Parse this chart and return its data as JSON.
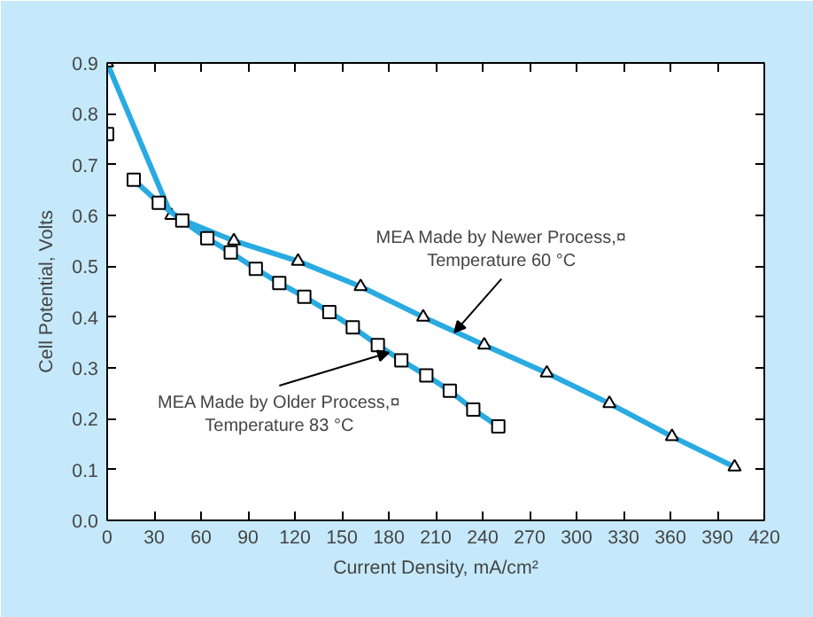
{
  "chart_data": {
    "type": "line",
    "xlabel": "Current Density, mA/cm²",
    "ylabel": "Cell Potential, Volts",
    "xlim": [
      0,
      420
    ],
    "ylim": [
      0,
      0.9
    ],
    "xticks": [
      0,
      30,
      60,
      90,
      120,
      150,
      180,
      210,
      240,
      270,
      300,
      330,
      360,
      390,
      420
    ],
    "yticks": [
      {
        "value": 0,
        "label": "0.0"
      },
      0.1,
      0.2,
      0.3,
      0.4,
      0.5,
      0.6,
      0.7,
      0.8,
      0.9
    ],
    "grid": false,
    "line_style": "solid",
    "series": [
      {
        "marker": "triangle",
        "color": "#29abe2",
        "x": [
          0,
          41,
          81,
          122,
          162,
          202,
          241,
          281,
          321,
          361,
          401
        ],
        "values": [
          0.9,
          0.6,
          0.55,
          0.51,
          0.46,
          0.4,
          0.345,
          0.29,
          0.23,
          0.165,
          0.105
        ]
      },
      {
        "marker": "square",
        "color": "#29abe2",
        "x": [
          17,
          33,
          48,
          64,
          79,
          95,
          110,
          126,
          142,
          157,
          173,
          188,
          204,
          219,
          234,
          250
        ],
        "values": [
          0.67,
          0.625,
          0.59,
          0.555,
          0.527,
          0.495,
          0.467,
          0.44,
          0.41,
          0.38,
          0.345,
          0.315,
          0.285,
          0.255,
          0.218,
          0.185
        ]
      },
      {
        "type": "scatter",
        "marker": "square",
        "color": "#000000",
        "x": [
          0
        ],
        "values": [
          0.76
        ]
      }
    ],
    "annotations": [
      {
        "text": "MEA Made by Newer Process,¤\nTemperature 60 °C",
        "x": 222,
        "y": 0.37
      },
      {
        "text": "MEA Made by Older Process,¤\nTemperature 83 °C",
        "x": 180,
        "y": 0.33
      }
    ]
  }
}
